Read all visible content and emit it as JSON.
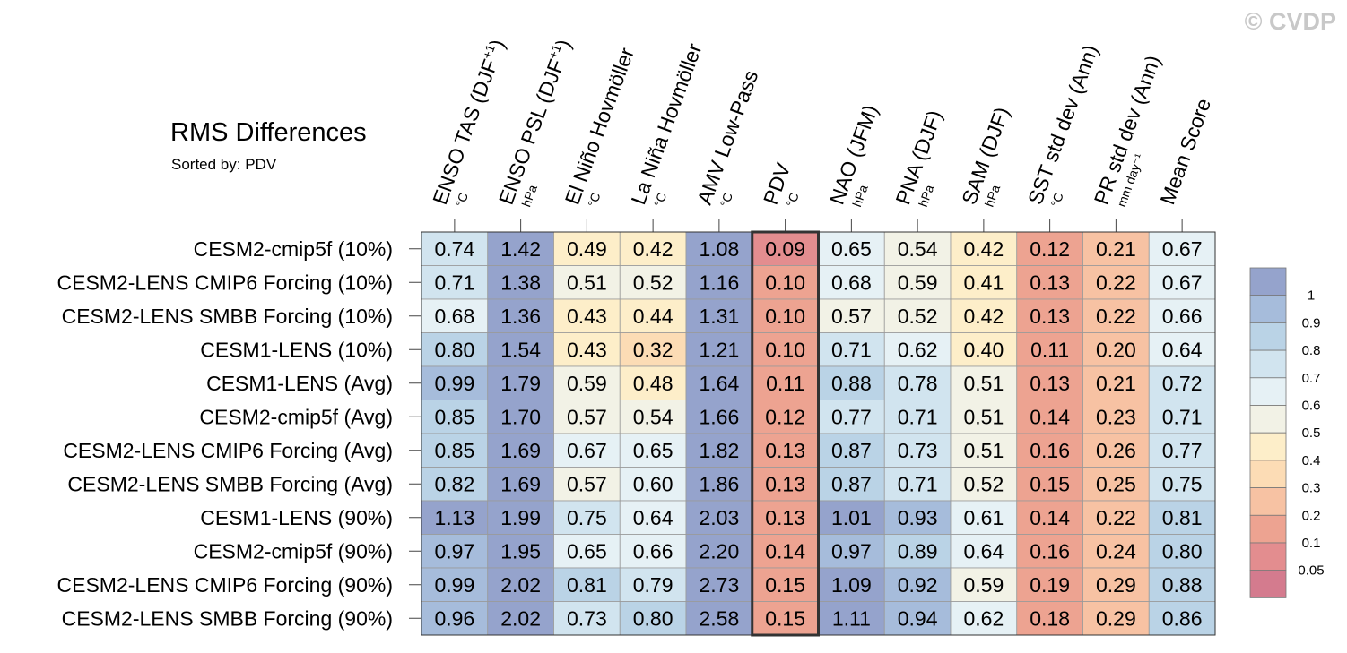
{
  "watermark": "© CVDP",
  "chart_data": {
    "type": "heatmap",
    "title": "RMS Differences",
    "subtitle": "Sorted by: PDV",
    "highlight_column": "PDV",
    "columns": [
      {
        "name": "ENSO TAS (DJF",
        "sup": "+1",
        "close": ")",
        "unit": "°C"
      },
      {
        "name": "ENSO PSL (DJF",
        "sup": "+1",
        "close": ")",
        "unit": "hPa"
      },
      {
        "name": "El Niño Hovmöller",
        "sup": "",
        "close": "",
        "unit": "°C"
      },
      {
        "name": "La Niña Hovmöller",
        "sup": "",
        "close": "",
        "unit": "°C"
      },
      {
        "name": "AMV Low-Pass",
        "sup": "",
        "close": "",
        "unit": "°C"
      },
      {
        "name": "PDV",
        "sup": "",
        "close": "",
        "unit": "°C"
      },
      {
        "name": "NAO (JFM)",
        "sup": "",
        "close": "",
        "unit": "hPa"
      },
      {
        "name": "PNA (DJF)",
        "sup": "",
        "close": "",
        "unit": "hPa"
      },
      {
        "name": "SAM (DJF)",
        "sup": "",
        "close": "",
        "unit": "hPa"
      },
      {
        "name": "SST std dev (Ann)",
        "sup": "",
        "close": "",
        "unit": "°C"
      },
      {
        "name": "PR std dev (Ann)",
        "sup": "",
        "close": "",
        "unit": "mm day⁻¹"
      },
      {
        "name": "Mean Score",
        "sup": "",
        "close": "",
        "unit": ""
      }
    ],
    "rows": [
      "CESM2-cmip5f (10%)",
      "CESM2-LENS CMIP6 Forcing (10%)",
      "CESM2-LENS SMBB Forcing (10%)",
      "CESM1-LENS (10%)",
      "CESM1-LENS (Avg)",
      "CESM2-cmip5f (Avg)",
      "CESM2-LENS CMIP6 Forcing (Avg)",
      "CESM2-LENS SMBB Forcing (Avg)",
      "CESM1-LENS (90%)",
      "CESM2-cmip5f (90%)",
      "CESM2-LENS CMIP6 Forcing (90%)",
      "CESM2-LENS SMBB Forcing (90%)"
    ],
    "values": [
      [
        "0.74",
        "1.42",
        "0.49",
        "0.42",
        "1.08",
        "0.09",
        "0.65",
        "0.54",
        "0.42",
        "0.12",
        "0.21",
        "0.67"
      ],
      [
        "0.71",
        "1.38",
        "0.51",
        "0.52",
        "1.16",
        "0.10",
        "0.68",
        "0.59",
        "0.41",
        "0.13",
        "0.22",
        "0.67"
      ],
      [
        "0.68",
        "1.36",
        "0.43",
        "0.44",
        "1.31",
        "0.10",
        "0.57",
        "0.52",
        "0.42",
        "0.13",
        "0.22",
        "0.66"
      ],
      [
        "0.80",
        "1.54",
        "0.43",
        "0.32",
        "1.21",
        "0.10",
        "0.71",
        "0.62",
        "0.40",
        "0.11",
        "0.20",
        "0.64"
      ],
      [
        "0.99",
        "1.79",
        "0.59",
        "0.48",
        "1.64",
        "0.11",
        "0.88",
        "0.78",
        "0.51",
        "0.13",
        "0.21",
        "0.72"
      ],
      [
        "0.85",
        "1.70",
        "0.57",
        "0.54",
        "1.66",
        "0.12",
        "0.77",
        "0.71",
        "0.51",
        "0.14",
        "0.23",
        "0.71"
      ],
      [
        "0.85",
        "1.69",
        "0.67",
        "0.65",
        "1.82",
        "0.13",
        "0.87",
        "0.73",
        "0.51",
        "0.16",
        "0.26",
        "0.77"
      ],
      [
        "0.82",
        "1.69",
        "0.57",
        "0.60",
        "1.86",
        "0.13",
        "0.87",
        "0.71",
        "0.52",
        "0.15",
        "0.25",
        "0.75"
      ],
      [
        "1.13",
        "1.99",
        "0.75",
        "0.64",
        "2.03",
        "0.13",
        "1.01",
        "0.93",
        "0.61",
        "0.14",
        "0.22",
        "0.81"
      ],
      [
        "0.97",
        "1.95",
        "0.65",
        "0.66",
        "2.20",
        "0.14",
        "0.97",
        "0.89",
        "0.64",
        "0.16",
        "0.24",
        "0.80"
      ],
      [
        "0.99",
        "2.02",
        "0.81",
        "0.79",
        "2.73",
        "0.15",
        "1.09",
        "0.92",
        "0.59",
        "0.19",
        "0.29",
        "0.88"
      ],
      [
        "0.96",
        "2.02",
        "0.73",
        "0.80",
        "2.58",
        "0.15",
        "1.11",
        "0.94",
        "0.62",
        "0.18",
        "0.29",
        "0.86"
      ]
    ],
    "colorbar": {
      "labels": [
        "1",
        "0.9",
        "0.8",
        "0.7",
        "0.6",
        "0.5",
        "0.4",
        "0.3",
        "0.2",
        "0.1",
        "0.05"
      ],
      "colors": [
        "#95a3cc",
        "#a6bcdb",
        "#bad3e6",
        "#d1e4ef",
        "#e6f1f5",
        "#f2f2e6",
        "#fdeec9",
        "#fcdcb5",
        "#f7c2a3",
        "#eda391",
        "#e38d8f",
        "#d47b8e"
      ]
    }
  }
}
